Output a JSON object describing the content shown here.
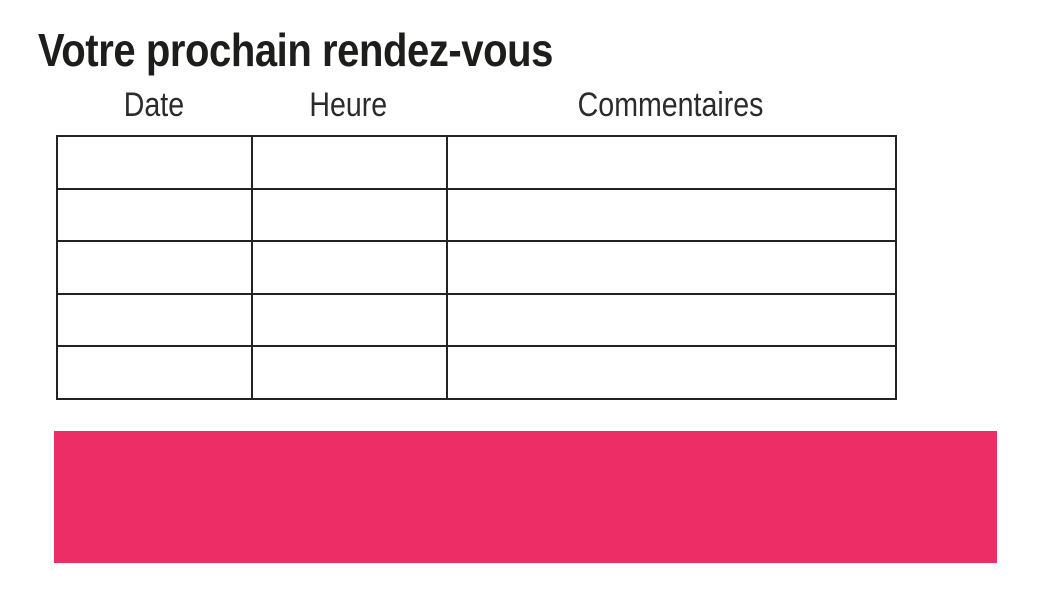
{
  "page": {
    "title": "Votre prochain rendez-vous"
  },
  "table": {
    "columns": [
      "Date",
      "Heure",
      "Commentaires"
    ],
    "rows": [
      [
        "",
        "",
        ""
      ],
      [
        "",
        "",
        ""
      ],
      [
        "",
        "",
        ""
      ],
      [
        "",
        "",
        ""
      ],
      [
        "",
        "",
        ""
      ]
    ]
  },
  "colors": {
    "highlight_block": "#ED2E66",
    "title_text": "#1D1D1B",
    "table_border": "#232323"
  }
}
